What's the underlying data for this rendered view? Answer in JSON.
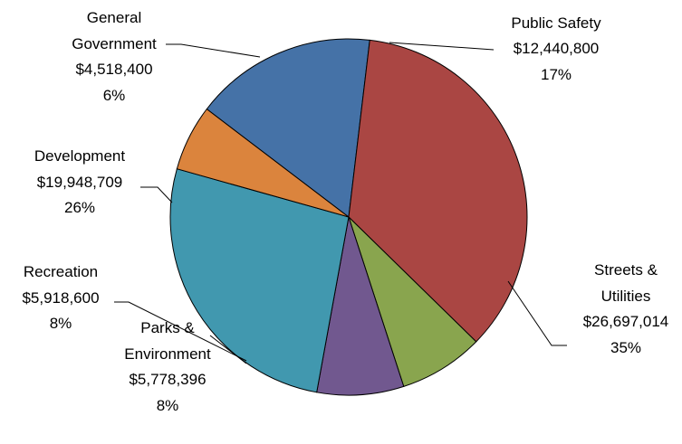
{
  "chart_data": {
    "type": "pie",
    "title": "",
    "slices": [
      {
        "name": "Public Safety",
        "value": 12440800,
        "value_label": "$12,440,800",
        "percent_label": "17%",
        "color": "#4572A7"
      },
      {
        "name": "Streets & Utilities",
        "name_lines": [
          "Streets &",
          "Utilities"
        ],
        "value": 26697014,
        "value_label": "$26,697,014",
        "percent_label": "35%",
        "color": "#AA4643"
      },
      {
        "name": "Parks & Environment",
        "name_lines": [
          "Parks &",
          "Environment"
        ],
        "value": 5778396,
        "value_label": "$5,778,396",
        "percent_label": "8%",
        "color": "#89A54E"
      },
      {
        "name": "Recreation",
        "value": 5918600,
        "value_label": "$5,918,600",
        "percent_label": "8%",
        "color": "#71588F"
      },
      {
        "name": "Development",
        "value": 19948709,
        "value_label": "$19,948,709",
        "percent_label": "26%",
        "color": "#4198AF"
      },
      {
        "name": "General Government",
        "name_lines": [
          "General",
          "Government"
        ],
        "value": 4518400,
        "value_label": "$4,518,400",
        "percent_label": "6%",
        "color": "#DB843D"
      }
    ]
  }
}
